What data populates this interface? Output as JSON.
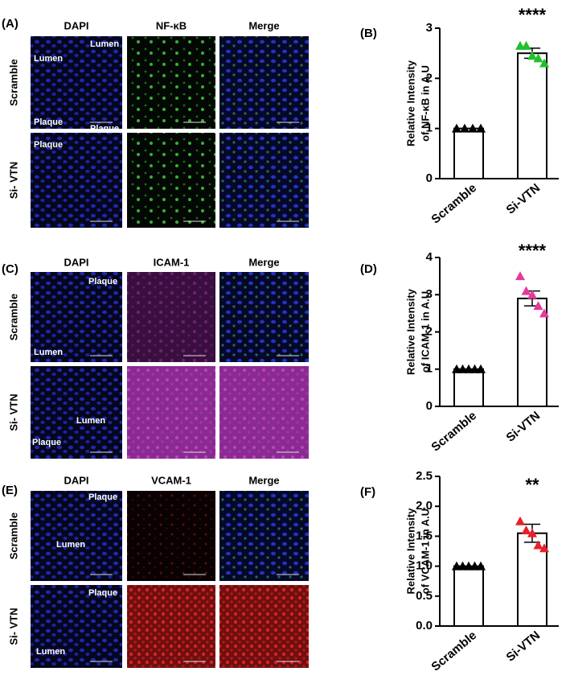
{
  "panels": [
    {
      "label": "(A)",
      "columns": [
        "DAPI",
        "NF-κB",
        "Merge"
      ],
      "rows": [
        "Scramble",
        "Si- VTN"
      ],
      "annotations": [
        "Lumen",
        "Lumen",
        "Plaque",
        "Plaque",
        "Plaque"
      ]
    },
    {
      "label": "(C)",
      "columns": [
        "DAPI",
        "ICAM-1",
        "Merge"
      ],
      "rows": [
        "Scramble",
        "Si- VTN"
      ],
      "annotations": [
        "Plaque",
        "Lumen",
        "Lumen",
        "Plaque"
      ]
    },
    {
      "label": "(E)",
      "columns": [
        "DAPI",
        "VCAM-1",
        "Merge"
      ],
      "rows": [
        "Scramble",
        "Si- VTN"
      ],
      "annotations": [
        "Plaque",
        "Lumen",
        "Plaque",
        "Lumen"
      ]
    }
  ],
  "chart_data": [
    {
      "type": "bar",
      "panel_label": "(B)",
      "ylabel": [
        "Relative Intensity",
        "of NF-κB in A.U"
      ],
      "categories": [
        "Scramble",
        "Si-VTN"
      ],
      "values": [
        1,
        2.5
      ],
      "errors": [
        0,
        0.1
      ],
      "points": [
        [
          1,
          1,
          1,
          1
        ],
        [
          2.65,
          2.65,
          2.45,
          2.4,
          2.3
        ]
      ],
      "point_colors": [
        "#000000",
        "#22c02a"
      ],
      "significance": "****",
      "ylim": [
        0,
        3
      ],
      "yticks": [
        0,
        1,
        2,
        3
      ]
    },
    {
      "type": "bar",
      "panel_label": "(D)",
      "ylabel": [
        "Relative Intensity",
        "of ICAM-1 in A.U"
      ],
      "categories": [
        "Scramble",
        "Si-VTN"
      ],
      "values": [
        1,
        2.9
      ],
      "errors": [
        0,
        0.2
      ],
      "points": [
        [
          1,
          1,
          1,
          1,
          1
        ],
        [
          3.5,
          3.1,
          3.0,
          2.7,
          2.5
        ]
      ],
      "point_colors": [
        "#000000",
        "#e6399b"
      ],
      "significance": "****",
      "ylim": [
        0,
        4
      ],
      "yticks": [
        0,
        1,
        2,
        3,
        4
      ]
    },
    {
      "type": "bar",
      "panel_label": "(F)",
      "ylabel": [
        "Relative Intensity",
        "of VCAM-1 in A.U"
      ],
      "categories": [
        "Scramble",
        "Si-VTN"
      ],
      "values": [
        1,
        1.55
      ],
      "errors": [
        0,
        0.15
      ],
      "points": [
        [
          1,
          1,
          1,
          1,
          1
        ],
        [
          1.75,
          1.6,
          1.55,
          1.35,
          1.3
        ]
      ],
      "point_colors": [
        "#000000",
        "#e8202a"
      ],
      "significance": "**",
      "ylim": [
        0,
        2.5
      ],
      "yticks": [
        {
          "value": 0,
          "label": "0.0"
        },
        0.5,
        {
          "value": 1,
          "label": "1.0"
        },
        1.5,
        {
          "value": 2,
          "label": "2.0"
        },
        2.5
      ]
    }
  ]
}
